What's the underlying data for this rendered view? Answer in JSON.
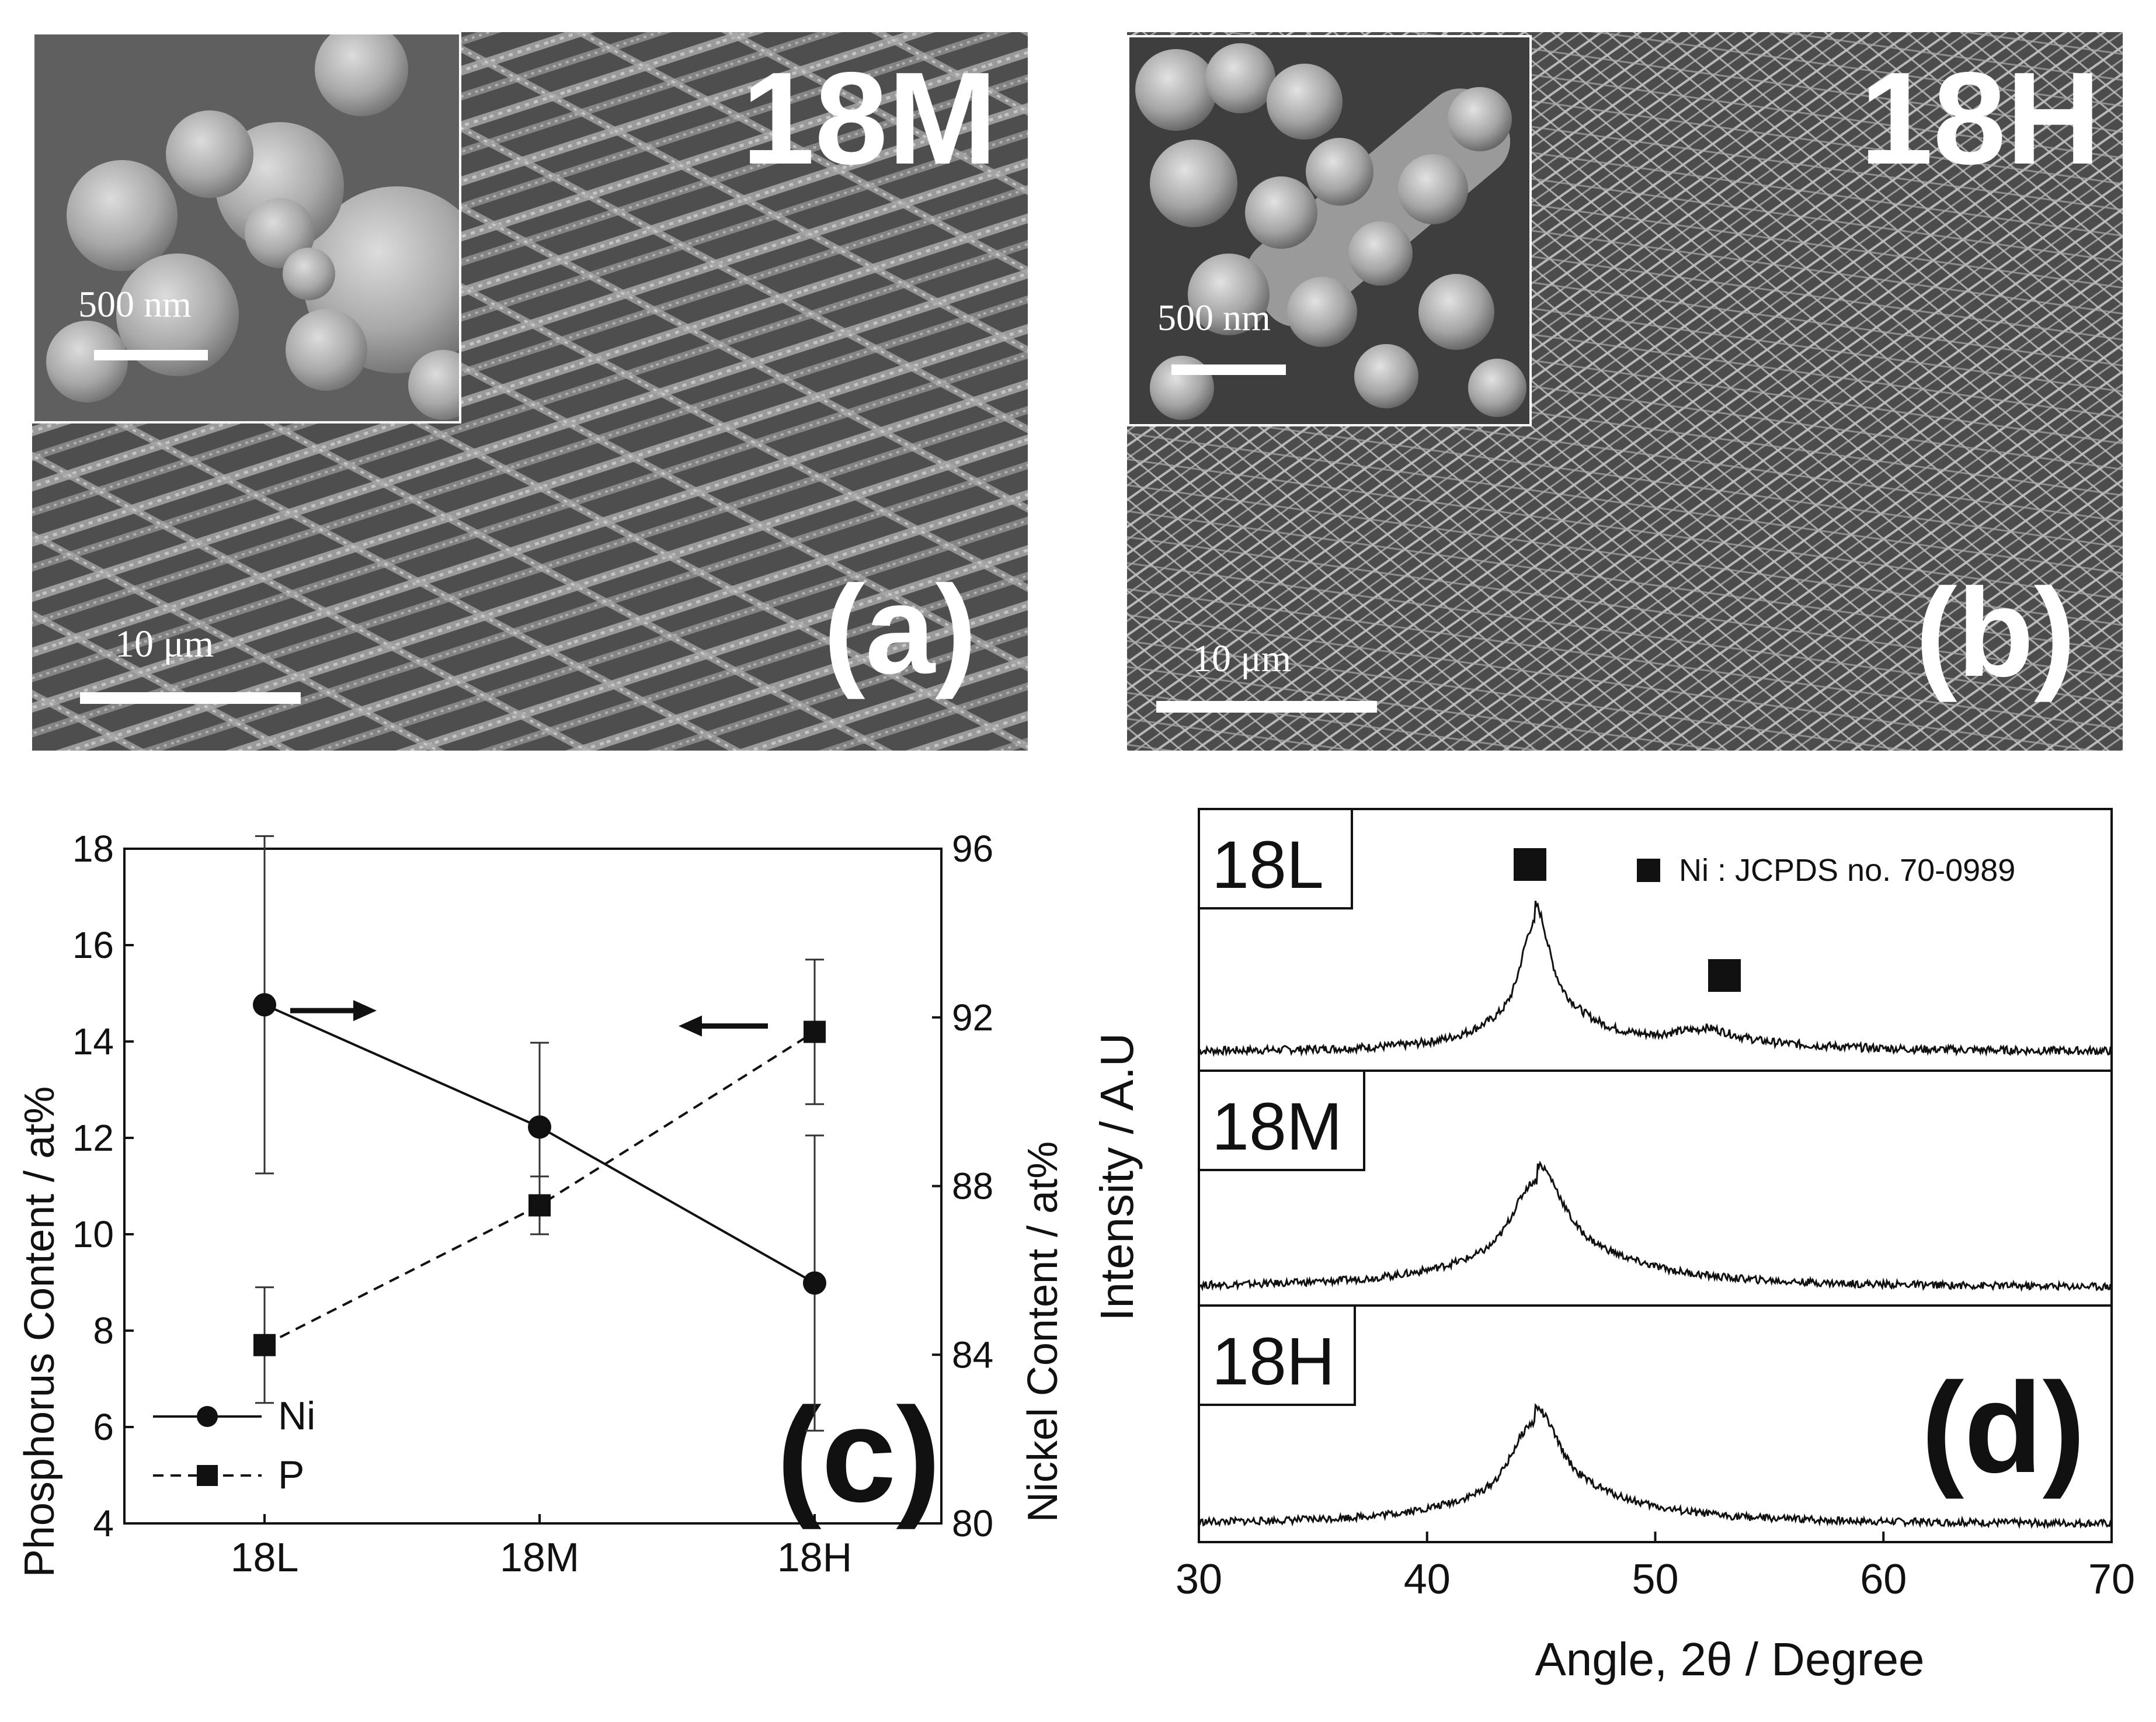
{
  "panel_a": {
    "sample_label": "18M",
    "panel_label": "(a)",
    "inset_scale": "500 nm",
    "main_scale": "10 μm"
  },
  "panel_b": {
    "sample_label": "18H",
    "panel_label": "(b)",
    "inset_scale": "500 nm",
    "main_scale": "10 μm"
  },
  "chart_data": [
    {
      "panel": "c",
      "type": "line",
      "panel_label": "(c)",
      "categories": [
        "18L",
        "18M",
        "18H"
      ],
      "ylabel_left": "Phosphorus Content / at%",
      "ylabel_right": "Nickel Content / at%",
      "ylim_left": [
        4,
        18
      ],
      "yticks_left": [
        4,
        6,
        8,
        10,
        12,
        14,
        16,
        18
      ],
      "ylim_right": [
        80,
        96
      ],
      "yticks_right": [
        80,
        84,
        88,
        92,
        96
      ],
      "series": [
        {
          "name": "Ni",
          "axis": "right",
          "marker": "circle",
          "linestyle": "solid",
          "values": [
            92.3,
            89.4,
            85.7
          ],
          "errors": [
            4.0,
            2.0,
            3.5
          ]
        },
        {
          "name": "P",
          "axis": "left",
          "marker": "square",
          "linestyle": "dashed",
          "values": [
            7.7,
            10.6,
            14.2
          ],
          "errors": [
            1.2,
            0.6,
            1.5
          ]
        }
      ],
      "legend_placement": "bottom-left"
    },
    {
      "panel": "d",
      "type": "line",
      "panel_label": "(d)",
      "xlabel": "Angle, 2θ / Degree",
      "ylabel": "Intensity / A.U",
      "xlim": [
        30,
        70
      ],
      "xticks": [
        30,
        40,
        50,
        60,
        70
      ],
      "reference_legend": "Ni : JCPDS no. 70-0989",
      "reference_peaks": [
        45.5,
        53
      ],
      "series": [
        {
          "name": "18L",
          "baseline": 0.05,
          "peaks": [
            {
              "center": 44.7,
              "height": 0.9,
              "width": 0.9
            },
            {
              "center": 52,
              "height": 0.12,
              "width": 2.0
            }
          ]
        },
        {
          "name": "18M",
          "baseline": 0.05,
          "peaks": [
            {
              "center": 44.8,
              "height": 0.85,
              "width": 1.6
            }
          ]
        },
        {
          "name": "18H",
          "baseline": 0.05,
          "peaks": [
            {
              "center": 44.7,
              "height": 0.8,
              "width": 1.5
            }
          ]
        }
      ]
    }
  ]
}
